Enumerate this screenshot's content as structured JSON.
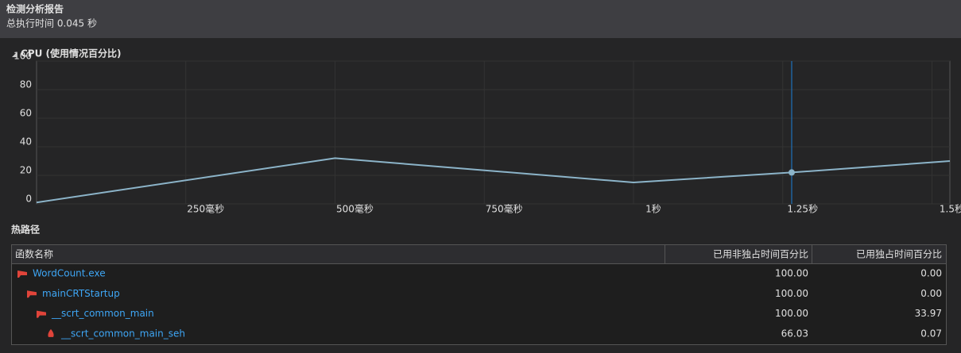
{
  "header": {
    "title": "检测分析报告",
    "subtitle": "总执行时间 0.045 秒"
  },
  "chart_data": {
    "type": "line",
    "title": "CPU (使用情况百分比)",
    "x": [
      0,
      500,
      1000,
      1265,
      1530
    ],
    "series": [
      {
        "name": "CPU",
        "color": "#8cb4c9",
        "values": [
          1,
          32,
          15,
          22,
          30
        ]
      }
    ],
    "selection": 1265,
    "xlim": [
      0,
      1530
    ],
    "ylim": [
      0,
      100
    ],
    "xticks": [
      {
        "value": 250,
        "label": "250毫秒"
      },
      {
        "value": 500,
        "label": "500毫秒"
      },
      {
        "value": 750,
        "label": "750毫秒"
      },
      {
        "value": 1000,
        "label": "1秒"
      },
      {
        "value": 1250,
        "label": "1.25秒"
      },
      {
        "value": 1500,
        "label": "1.5秒"
      }
    ],
    "yticks": [
      0,
      20,
      40,
      60,
      80,
      100
    ],
    "grid": true
  },
  "hot_path": {
    "title": "热路径",
    "columns": [
      "函数名称",
      "已用非独占时间百分比",
      "已用独占时间百分比"
    ],
    "rows": [
      [
        "WordCount.exe",
        "100.00",
        "0.00"
      ],
      [
        "mainCRTStartup",
        "100.00",
        "0.00"
      ],
      [
        "__scrt_common_main",
        "100.00",
        "33.97"
      ],
      [
        "__scrt_common_main_seh",
        "66.03",
        "0.07"
      ]
    ]
  }
}
